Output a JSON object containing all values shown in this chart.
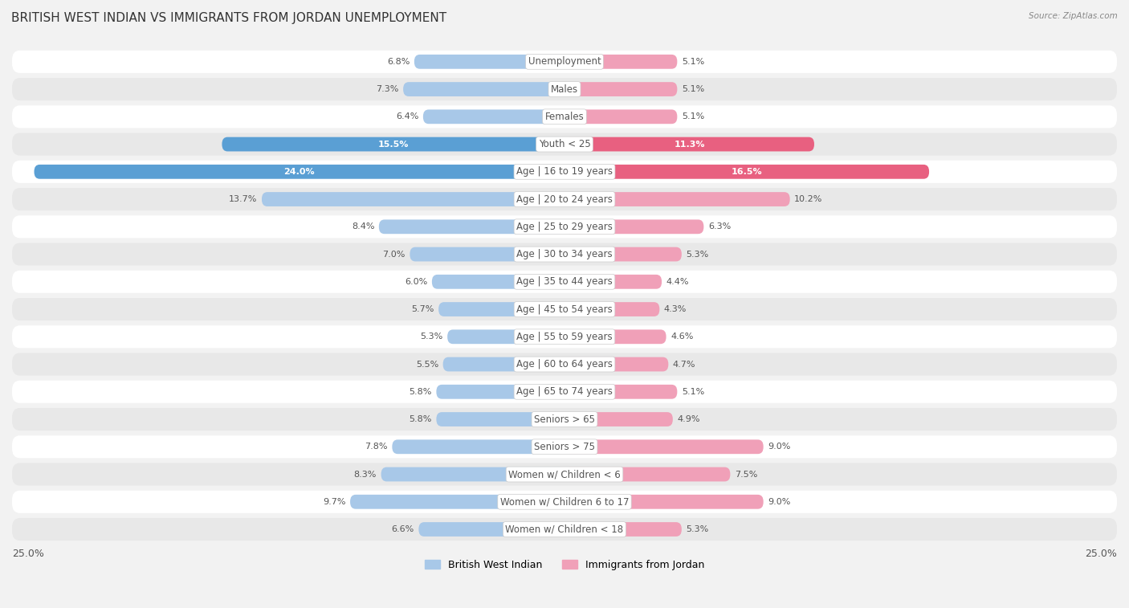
{
  "title": "BRITISH WEST INDIAN VS IMMIGRANTS FROM JORDAN UNEMPLOYMENT",
  "source": "Source: ZipAtlas.com",
  "categories": [
    "Unemployment",
    "Males",
    "Females",
    "Youth < 25",
    "Age | 16 to 19 years",
    "Age | 20 to 24 years",
    "Age | 25 to 29 years",
    "Age | 30 to 34 years",
    "Age | 35 to 44 years",
    "Age | 45 to 54 years",
    "Age | 55 to 59 years",
    "Age | 60 to 64 years",
    "Age | 65 to 74 years",
    "Seniors > 65",
    "Seniors > 75",
    "Women w/ Children < 6",
    "Women w/ Children 6 to 17",
    "Women w/ Children < 18"
  ],
  "left_values": [
    6.8,
    7.3,
    6.4,
    15.5,
    24.0,
    13.7,
    8.4,
    7.0,
    6.0,
    5.7,
    5.3,
    5.5,
    5.8,
    5.8,
    7.8,
    8.3,
    9.7,
    6.6
  ],
  "right_values": [
    5.1,
    5.1,
    5.1,
    11.3,
    16.5,
    10.2,
    6.3,
    5.3,
    4.4,
    4.3,
    4.6,
    4.7,
    5.1,
    4.9,
    9.0,
    7.5,
    9.0,
    5.3
  ],
  "left_color_normal": "#a8c8e8",
  "right_color_normal": "#f0a0b8",
  "left_color_highlight": "#5a9fd4",
  "right_color_highlight": "#e86080",
  "highlight_rows": [
    3,
    4
  ],
  "max_value": 25.0,
  "left_label": "British West Indian",
  "right_label": "Immigrants from Jordan",
  "bg_color": "#f2f2f2",
  "row_color_even": "#ffffff",
  "row_color_odd": "#e8e8e8",
  "title_fontsize": 11,
  "cat_fontsize": 8.5,
  "val_fontsize": 8.0
}
